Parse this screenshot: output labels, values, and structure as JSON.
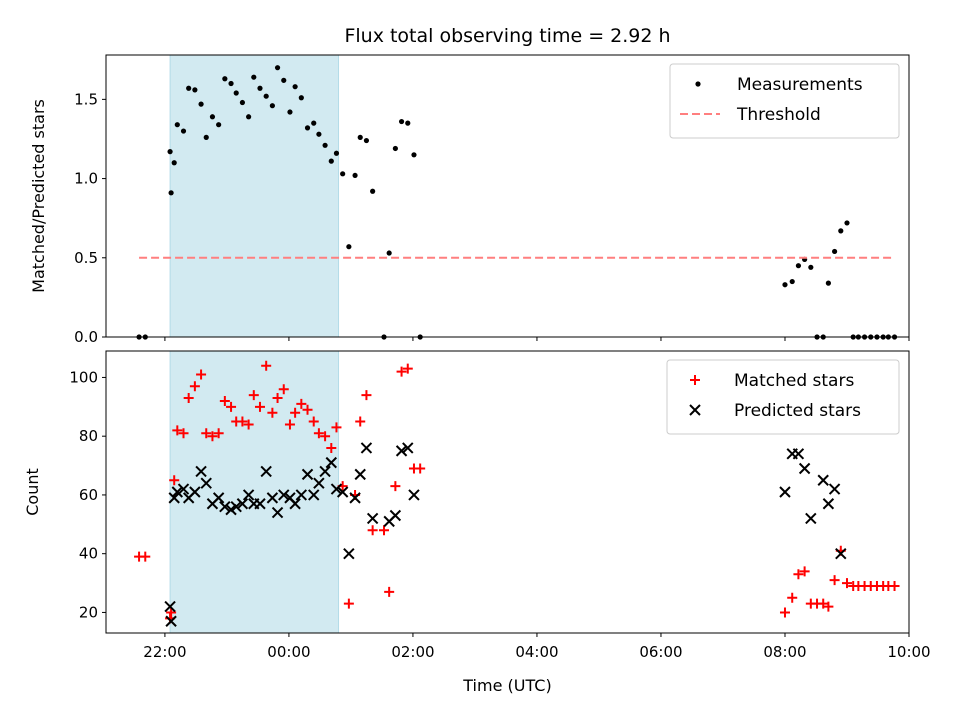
{
  "chart_data": [
    {
      "type": "scatter",
      "title": "Flux total observing time = 2.92 h",
      "xlabel": "",
      "ylabel": "Matched/Predicted stars",
      "x_unit": "hours UTC (continuous, wraps past 24)",
      "xlim": [
        "21:03",
        "10:00"
      ],
      "ylim": [
        0,
        1.78
      ],
      "yticks": [
        "0.0",
        "0.5",
        "1.0",
        "1.5"
      ],
      "legend_position": "upper-right",
      "shaded_interval": [
        "22:05",
        "00:48"
      ],
      "shaded_color": "#add8e6",
      "series": [
        {
          "name": "Measurements",
          "color": "#000000",
          "marker": "dot",
          "points": [
            [
              "21:35",
              0.0
            ],
            [
              "21:41",
              0.0
            ],
            [
              "22:05",
              1.17
            ],
            [
              "22:06",
              0.91
            ],
            [
              "22:09",
              1.1
            ],
            [
              "22:12",
              1.34
            ],
            [
              "22:18",
              1.3
            ],
            [
              "22:23",
              1.57
            ],
            [
              "22:29",
              1.56
            ],
            [
              "22:35",
              1.47
            ],
            [
              "22:40",
              1.26
            ],
            [
              "22:46",
              1.39
            ],
            [
              "22:52",
              1.34
            ],
            [
              "22:58",
              1.63
            ],
            [
              "23:04",
              1.6
            ],
            [
              "23:09",
              1.54
            ],
            [
              "23:15",
              1.48
            ],
            [
              "23:21",
              1.39
            ],
            [
              "23:26",
              1.64
            ],
            [
              "23:32",
              1.57
            ],
            [
              "23:38",
              1.52
            ],
            [
              "23:44",
              1.46
            ],
            [
              "23:49",
              1.7
            ],
            [
              "23:55",
              1.62
            ],
            [
              "00:01",
              1.42
            ],
            [
              "00:06",
              1.58
            ],
            [
              "00:12",
              1.51
            ],
            [
              "00:18",
              1.32
            ],
            [
              "00:24",
              1.35
            ],
            [
              "00:29",
              1.28
            ],
            [
              "00:35",
              1.21
            ],
            [
              "00:41",
              1.11
            ],
            [
              "00:46",
              1.16
            ],
            [
              "00:52",
              1.03
            ],
            [
              "00:58",
              0.57
            ],
            [
              "01:04",
              1.02
            ],
            [
              "01:09",
              1.26
            ],
            [
              "01:15",
              1.24
            ],
            [
              "01:21",
              0.92
            ],
            [
              "01:32",
              0.0
            ],
            [
              "01:37",
              0.53
            ],
            [
              "01:43",
              1.19
            ],
            [
              "01:49",
              1.36
            ],
            [
              "01:55",
              1.35
            ],
            [
              "02:01",
              1.15
            ],
            [
              "02:07",
              0.0
            ],
            [
              "08:00",
              0.33
            ],
            [
              "08:07",
              0.35
            ],
            [
              "08:13",
              0.45
            ],
            [
              "08:19",
              0.49
            ],
            [
              "08:25",
              0.44
            ],
            [
              "08:31",
              0.0
            ],
            [
              "08:37",
              0.0
            ],
            [
              "08:42",
              0.34
            ],
            [
              "08:48",
              0.54
            ],
            [
              "08:54",
              0.67
            ],
            [
              "09:00",
              0.72
            ],
            [
              "09:06",
              0.0
            ],
            [
              "09:11",
              0.0
            ],
            [
              "09:17",
              0.0
            ],
            [
              "09:23",
              0.0
            ],
            [
              "09:29",
              0.0
            ],
            [
              "09:35",
              0.0
            ],
            [
              "09:40",
              0.0
            ],
            [
              "09:46",
              0.0
            ]
          ]
        },
        {
          "name": "Threshold",
          "color": "#ff7f7f",
          "style": "dashed",
          "points": [
            [
              "21:35",
              0.5
            ],
            [
              "09:46",
              0.5
            ]
          ]
        }
      ]
    },
    {
      "type": "scatter",
      "title": "",
      "xlabel": "Time (UTC)",
      "ylabel": "Count",
      "x_unit": "hours UTC (continuous, wraps past 24)",
      "xlim": [
        "21:03",
        "10:00"
      ],
      "ylim": [
        13,
        109
      ],
      "yticks": [
        "20",
        "40",
        "60",
        "80",
        "100"
      ],
      "xticks": [
        "22:00",
        "00:00",
        "02:00",
        "04:00",
        "06:00",
        "08:00",
        "10:00"
      ],
      "legend_position": "upper-right",
      "shaded_interval": [
        "22:05",
        "00:48"
      ],
      "shaded_color": "#add8e6",
      "series": [
        {
          "name": "Matched stars",
          "color": "#ff0000",
          "marker": "plus",
          "points": [
            [
              "21:35",
              39
            ],
            [
              "21:41",
              39
            ],
            [
              "22:05",
              18
            ],
            [
              "22:06",
              20
            ],
            [
              "22:09",
              65
            ],
            [
              "22:12",
              82
            ],
            [
              "22:18",
              81
            ],
            [
              "22:23",
              93
            ],
            [
              "22:29",
              97
            ],
            [
              "22:35",
              101
            ],
            [
              "22:40",
              81
            ],
            [
              "22:46",
              80
            ],
            [
              "22:52",
              81
            ],
            [
              "22:58",
              92
            ],
            [
              "23:04",
              90
            ],
            [
              "23:09",
              85
            ],
            [
              "23:15",
              85
            ],
            [
              "23:21",
              84
            ],
            [
              "23:26",
              94
            ],
            [
              "23:32",
              90
            ],
            [
              "23:38",
              104
            ],
            [
              "23:44",
              88
            ],
            [
              "23:49",
              93
            ],
            [
              "23:55",
              96
            ],
            [
              "00:01",
              84
            ],
            [
              "00:06",
              88
            ],
            [
              "00:12",
              91
            ],
            [
              "00:18",
              89
            ],
            [
              "00:24",
              85
            ],
            [
              "00:29",
              81
            ],
            [
              "00:35",
              80
            ],
            [
              "00:41",
              76
            ],
            [
              "00:46",
              83
            ],
            [
              "00:52",
              63
            ],
            [
              "00:58",
              23
            ],
            [
              "01:04",
              60
            ],
            [
              "01:09",
              85
            ],
            [
              "01:15",
              94
            ],
            [
              "01:21",
              48
            ],
            [
              "01:32",
              48
            ],
            [
              "01:37",
              27
            ],
            [
              "01:43",
              63
            ],
            [
              "01:49",
              102
            ],
            [
              "01:55",
              103
            ],
            [
              "02:01",
              69
            ],
            [
              "02:07",
              69
            ],
            [
              "08:00",
              20
            ],
            [
              "08:07",
              25
            ],
            [
              "08:13",
              33
            ],
            [
              "08:19",
              34
            ],
            [
              "08:25",
              23
            ],
            [
              "08:31",
              23
            ],
            [
              "08:37",
              23
            ],
            [
              "08:42",
              22
            ],
            [
              "08:48",
              31
            ],
            [
              "08:54",
              41
            ],
            [
              "09:00",
              30
            ],
            [
              "09:06",
              29
            ],
            [
              "09:11",
              29
            ],
            [
              "09:17",
              29
            ],
            [
              "09:23",
              29
            ],
            [
              "09:29",
              29
            ],
            [
              "09:35",
              29
            ],
            [
              "09:40",
              29
            ],
            [
              "09:46",
              29
            ]
          ]
        },
        {
          "name": "Predicted stars",
          "color": "#000000",
          "marker": "x",
          "points": [
            [
              "22:05",
              22
            ],
            [
              "22:06",
              17
            ],
            [
              "22:09",
              59
            ],
            [
              "22:12",
              61
            ],
            [
              "22:18",
              62
            ],
            [
              "22:23",
              59
            ],
            [
              "22:29",
              61
            ],
            [
              "22:35",
              68
            ],
            [
              "22:40",
              64
            ],
            [
              "22:46",
              57
            ],
            [
              "22:52",
              59
            ],
            [
              "22:58",
              56
            ],
            [
              "23:04",
              55
            ],
            [
              "23:09",
              56
            ],
            [
              "23:15",
              57
            ],
            [
              "23:21",
              60
            ],
            [
              "23:26",
              57
            ],
            [
              "23:32",
              57
            ],
            [
              "23:38",
              68
            ],
            [
              "23:44",
              59
            ],
            [
              "23:49",
              54
            ],
            [
              "23:55",
              60
            ],
            [
              "00:01",
              59
            ],
            [
              "00:06",
              57
            ],
            [
              "00:12",
              60
            ],
            [
              "00:18",
              67
            ],
            [
              "00:24",
              60
            ],
            [
              "00:29",
              64
            ],
            [
              "00:35",
              68
            ],
            [
              "00:41",
              71
            ],
            [
              "00:46",
              62
            ],
            [
              "00:52",
              61
            ],
            [
              "00:58",
              40
            ],
            [
              "01:04",
              59
            ],
            [
              "01:09",
              67
            ],
            [
              "01:15",
              76
            ],
            [
              "01:21",
              52
            ],
            [
              "01:37",
              51
            ],
            [
              "01:43",
              53
            ],
            [
              "01:49",
              75
            ],
            [
              "01:55",
              76
            ],
            [
              "02:01",
              60
            ],
            [
              "08:00",
              61
            ],
            [
              "08:07",
              74
            ],
            [
              "08:13",
              74
            ],
            [
              "08:19",
              69
            ],
            [
              "08:25",
              52
            ],
            [
              "08:37",
              65
            ],
            [
              "08:42",
              57
            ],
            [
              "08:48",
              62
            ],
            [
              "08:54",
              40
            ]
          ]
        }
      ]
    }
  ]
}
